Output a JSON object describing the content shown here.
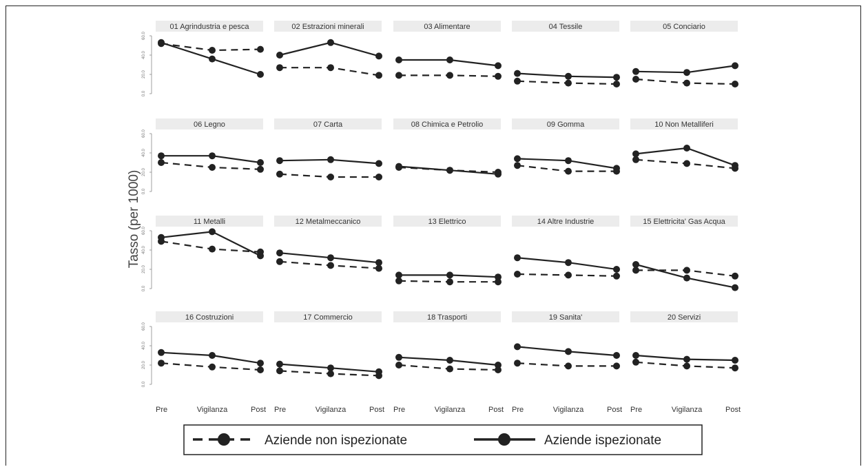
{
  "chart_data": {
    "type": "line",
    "ylabel": "Tasso (per 1000)",
    "categories": [
      "Pre",
      "Vigilanza",
      "Post"
    ],
    "ylim": [
      0,
      60
    ],
    "yticks": [
      "0.0",
      "20.0",
      "40.0",
      "60.0"
    ],
    "grid": false,
    "legend_position": "bottom",
    "series_names": [
      "Aziende non ispezionate",
      "Aziende ispezionate"
    ],
    "colors": {
      "line": "#222222",
      "title_band": "#ececec"
    },
    "panels": [
      {
        "title": "01 Agrindustria e pesca",
        "non_ispezionate": [
          52,
          45,
          46
        ],
        "ispezionate": [
          53,
          36,
          20
        ]
      },
      {
        "title": "02 Estrazioni minerali",
        "non_ispezionate": [
          27,
          27,
          19
        ],
        "ispezionate": [
          40,
          53,
          39
        ]
      },
      {
        "title": "03 Alimentare",
        "non_ispezionate": [
          19,
          19,
          18
        ],
        "ispezionate": [
          35,
          35,
          29
        ]
      },
      {
        "title": "04 Tessile",
        "non_ispezionate": [
          13,
          11,
          10
        ],
        "ispezionate": [
          21,
          18,
          17
        ]
      },
      {
        "title": "05 Conciario",
        "non_ispezionate": [
          15,
          11,
          10
        ],
        "ispezionate": [
          23,
          22,
          29
        ]
      },
      {
        "title": "06 Legno",
        "non_ispezionate": [
          30,
          25,
          23
        ],
        "ispezionate": [
          37,
          37,
          30
        ]
      },
      {
        "title": "07 Carta",
        "non_ispezionate": [
          18,
          15,
          15
        ],
        "ispezionate": [
          32,
          33,
          29
        ]
      },
      {
        "title": "08 Chimica e Petrolio",
        "non_ispezionate": [
          25,
          22,
          20
        ],
        "ispezionate": [
          26,
          22,
          18
        ]
      },
      {
        "title": "09 Gomma",
        "non_ispezionate": [
          27,
          21,
          21
        ],
        "ispezionate": [
          34,
          32,
          24
        ]
      },
      {
        "title": "10 Non Metalliferi",
        "non_ispezionate": [
          33,
          29,
          24
        ],
        "ispezionate": [
          39,
          45,
          27
        ]
      },
      {
        "title": "11 Metalli",
        "non_ispezionate": [
          49,
          41,
          38
        ],
        "ispezionate": [
          53,
          59,
          34
        ]
      },
      {
        "title": "12 Metalmeccanico",
        "non_ispezionate": [
          28,
          24,
          21
        ],
        "ispezionate": [
          37,
          32,
          27
        ]
      },
      {
        "title": "13 Elettrico",
        "non_ispezionate": [
          8,
          7,
          7
        ],
        "ispezionate": [
          14,
          14,
          12
        ]
      },
      {
        "title": "14 Altre Industrie",
        "non_ispezionate": [
          15,
          14,
          13
        ],
        "ispezionate": [
          32,
          27,
          20
        ]
      },
      {
        "title": "15 Elettricita' Gas Acqua",
        "non_ispezionate": [
          19,
          19,
          13
        ],
        "ispezionate": [
          25,
          11,
          1
        ]
      },
      {
        "title": "16 Costruzioni",
        "non_ispezionate": [
          22,
          18,
          15
        ],
        "ispezionate": [
          33,
          30,
          22
        ]
      },
      {
        "title": "17 Commercio",
        "non_ispezionate": [
          14,
          11,
          9
        ],
        "ispezionate": [
          21,
          17,
          13
        ]
      },
      {
        "title": "18 Trasporti",
        "non_ispezionate": [
          20,
          16,
          15
        ],
        "ispezionate": [
          28,
          25,
          20
        ]
      },
      {
        "title": "19 Sanita'",
        "non_ispezionate": [
          22,
          19,
          19
        ],
        "ispezionate": [
          39,
          34,
          30
        ]
      },
      {
        "title": "20 Servizi",
        "non_ispezionate": [
          23,
          19,
          17
        ],
        "ispezionate": [
          30,
          26,
          25
        ]
      }
    ]
  }
}
